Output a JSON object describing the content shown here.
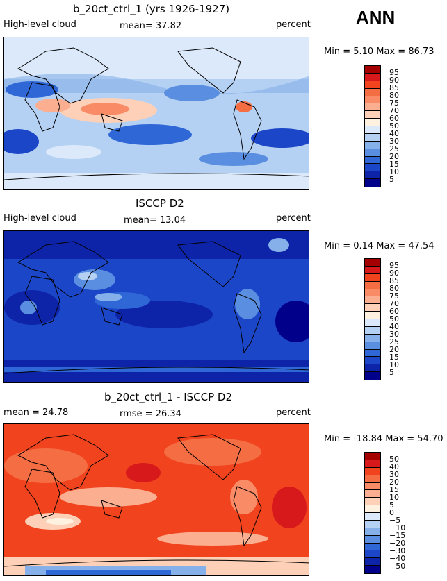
{
  "season": "ANN",
  "panels": [
    {
      "title": "b_20ct_ctrl_1 (yrs 1926-1927)",
      "left_label": "High-level cloud",
      "center_label": "mean=  37.82",
      "right_label": "percent",
      "minmax": "Min =   5.10 Max =  86.73",
      "ticks": [
        "95",
        "90",
        "85",
        "80",
        "75",
        "70",
        "60",
        "50",
        "40",
        "30",
        "25",
        "20",
        "15",
        "10",
        "5"
      ],
      "colors": [
        "#a50000",
        "#d7191c",
        "#f0431e",
        "#f46d43",
        "#f98c66",
        "#fcae91",
        "#fdd0b7",
        "#fff1e0",
        "#dbe9fa",
        "#b4d0f2",
        "#86b0ea",
        "#5a8ee0",
        "#3067d6",
        "#1c46c8",
        "#0d23a8",
        "#00008b"
      ]
    },
    {
      "title": "ISCCP D2",
      "left_label": "High-level cloud",
      "center_label": "mean=  13.04",
      "right_label": "percent",
      "minmax": "Min =   0.14 Max =  47.54",
      "ticks": [
        "95",
        "90",
        "85",
        "80",
        "75",
        "70",
        "60",
        "50",
        "40",
        "30",
        "25",
        "20",
        "15",
        "10",
        "5"
      ],
      "colors": [
        "#a50000",
        "#d7191c",
        "#f0431e",
        "#f46d43",
        "#f98c66",
        "#fcae91",
        "#fdd0b7",
        "#fff1e0",
        "#dbe9fa",
        "#b4d0f2",
        "#86b0ea",
        "#5a8ee0",
        "#3067d6",
        "#1c46c8",
        "#0d23a8",
        "#00008b"
      ]
    },
    {
      "title": "b_20ct_ctrl_1 - ISCCP D2",
      "left_label": "mean =  24.78",
      "center_label": "rmse =  26.34",
      "right_label": "percent",
      "minmax": "Min = -18.84 Max =  54.70",
      "ticks": [
        "50",
        "40",
        "30",
        "20",
        "15",
        "10",
        "5",
        "0",
        "−5",
        "−10",
        "−15",
        "−20",
        "−30",
        "−40",
        "−50"
      ],
      "colors": [
        "#a50000",
        "#d7191c",
        "#f0431e",
        "#f46d43",
        "#f98c66",
        "#fcae91",
        "#fdd0b7",
        "#fff1e0",
        "#dbe9fa",
        "#b4d0f2",
        "#86b0ea",
        "#5a8ee0",
        "#3067d6",
        "#1c46c8",
        "#0d23a8",
        "#00008b"
      ]
    }
  ]
}
